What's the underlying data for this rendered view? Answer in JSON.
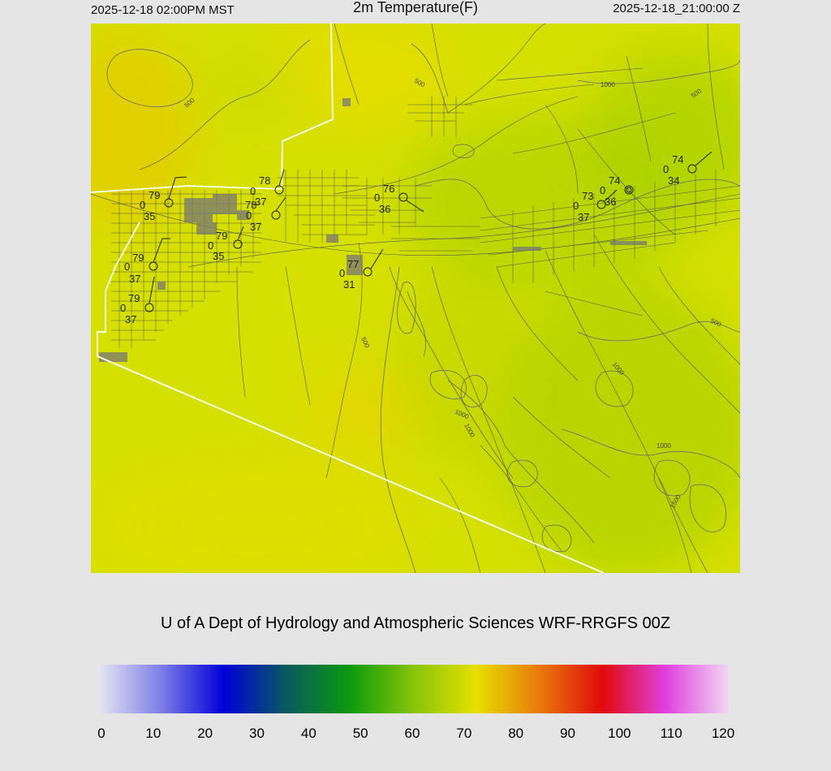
{
  "header": {
    "local_time": "2025-12-18 02:00PM MST",
    "title": "2m Temperature(F)",
    "utc_time": "2025-12-18_21:00:00 Z"
  },
  "credit": "U of A Dept of Hydrology and Atmospheric Sciences WRF-RRGFS 00Z",
  "colorbar": {
    "ticks": [
      "0",
      "10",
      "20",
      "30",
      "40",
      "50",
      "60",
      "70",
      "80",
      "90",
      "100",
      "110",
      "120"
    ],
    "range": [
      0,
      120
    ],
    "colors": [
      "#e8e8f2",
      "#7f7fe6",
      "#0000d8",
      "#0a5a60",
      "#0c9a0c",
      "#86c40a",
      "#e6e000",
      "#e87a0a",
      "#e00a0a",
      "#e040e0",
      "#f0d8f0"
    ]
  },
  "contour_labels": [
    "500",
    "500",
    "1000",
    "500",
    "500",
    "1000",
    "1000",
    "1000",
    "1000",
    "1500",
    "500"
  ],
  "stations": [
    {
      "temp": "79",
      "wind": "0",
      "dew": "35"
    },
    {
      "temp": "78",
      "wind": "0",
      "dew": "37"
    },
    {
      "temp": "78",
      "wind": "0",
      "dew": "37"
    },
    {
      "temp": "79",
      "wind": "0",
      "dew": "35"
    },
    {
      "temp": "79",
      "wind": "0",
      "dew": "37"
    },
    {
      "temp": "79",
      "wind": "0",
      "dew": "37"
    },
    {
      "temp": "76",
      "wind": "0",
      "dew": "36"
    },
    {
      "temp": "77",
      "wind": "0",
      "dew": "31"
    },
    {
      "temp": "73",
      "wind": "0",
      "dew": "37"
    },
    {
      "temp": "74",
      "wind": "0",
      "dew": "36"
    },
    {
      "temp": "74",
      "wind": "0",
      "dew": "34"
    }
  ]
}
